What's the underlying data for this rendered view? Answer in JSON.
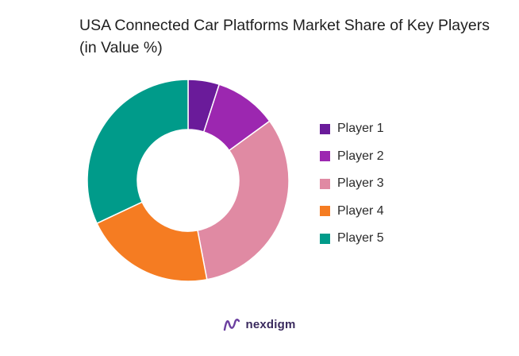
{
  "chart_data": {
    "type": "pie",
    "title": "USA Connected Car Platforms Market Share of Key Players (in Value %)",
    "categories": [
      "Player 1",
      "Player 2",
      "Player 3",
      "Player 4",
      "Player 5"
    ],
    "values": [
      5,
      10,
      32,
      21,
      32
    ],
    "colors": [
      "#6a1b9a",
      "#9c27b0",
      "#e08aa3",
      "#f57c22",
      "#009b8a"
    ],
    "donut": true,
    "legend_position": "right"
  },
  "brand": {
    "name": "nexdigm",
    "logo_icon": "nexdigm-logo-icon"
  }
}
